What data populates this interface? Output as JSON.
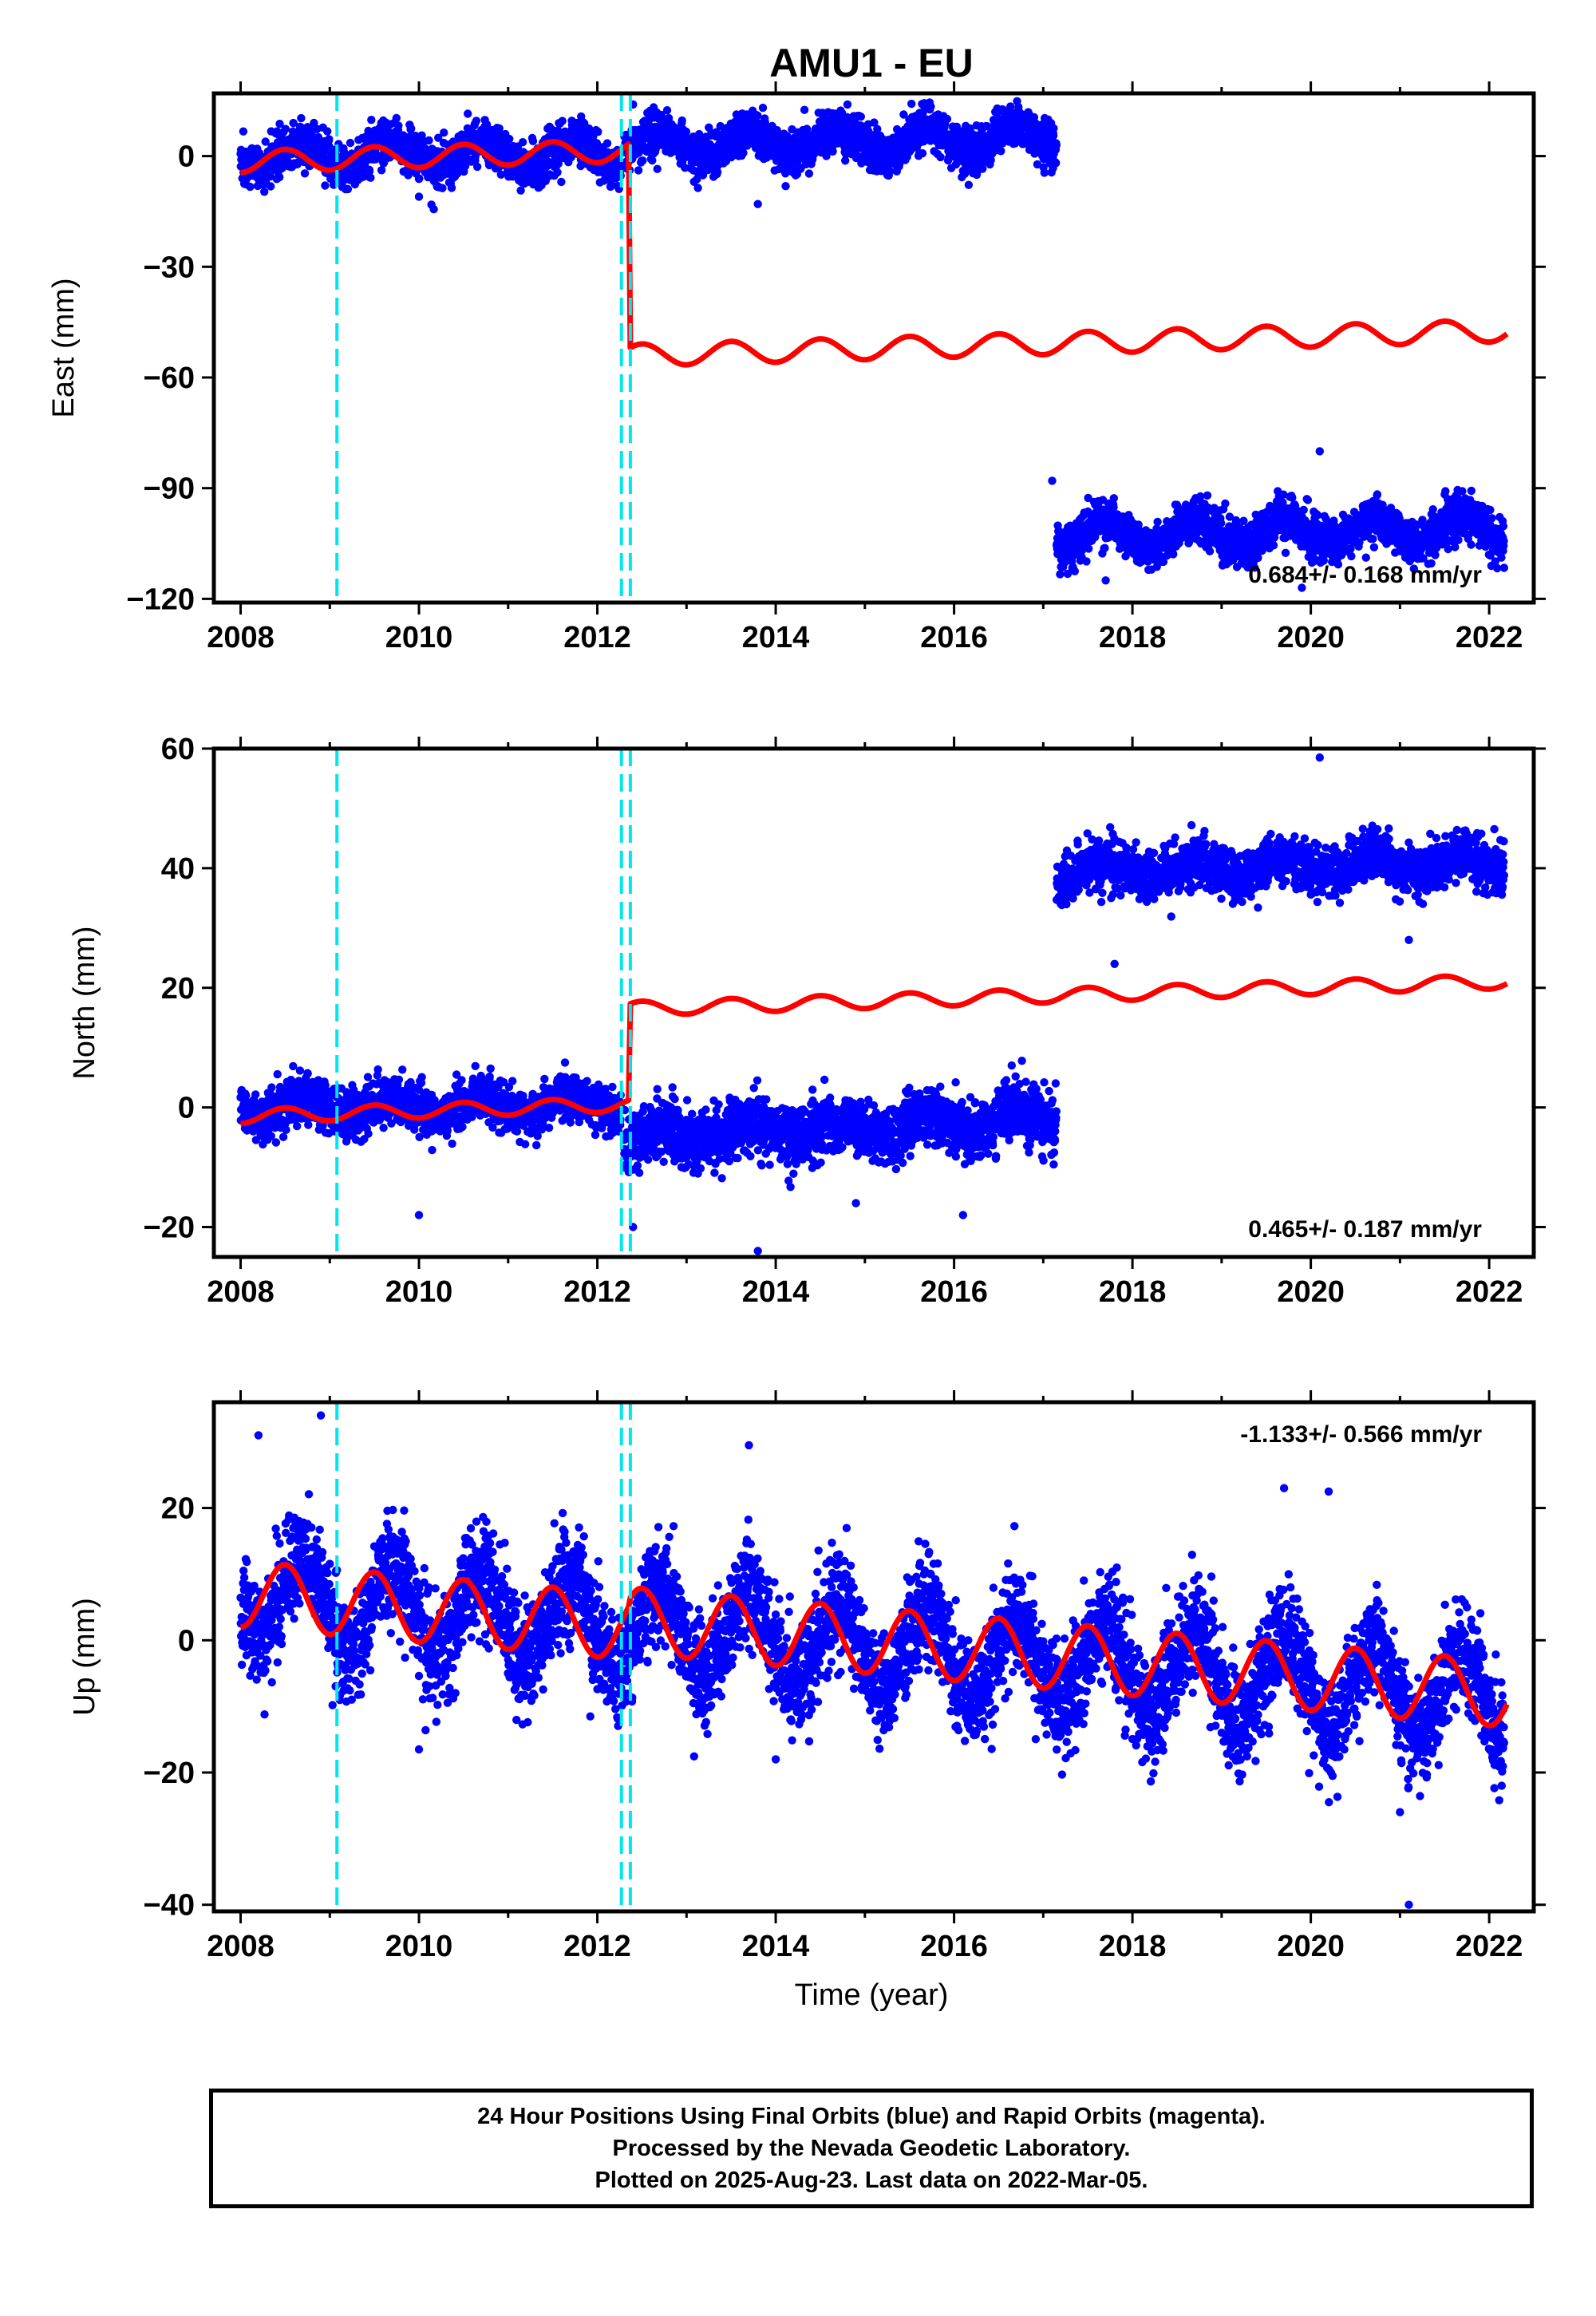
{
  "chart_data": {
    "title": "AMU1 - EU",
    "type": "scatter",
    "xlabel": "Time (year)",
    "x_ticks": [
      2008,
      2010,
      2012,
      2014,
      2016,
      2018,
      2020,
      2022
    ],
    "xlim": [
      2007.7,
      2022.5
    ],
    "offset_lines": [
      2009.08,
      2012.27,
      2012.37
    ],
    "colors": {
      "observations": "#0000ff",
      "model": "#ff0000",
      "offsets": "#00e5ee",
      "frame": "#000000"
    },
    "panels": [
      {
        "ylabel": "East (mm)",
        "ylim": [
          -121,
          17
        ],
        "y_ticks": [
          0,
          -30,
          -60,
          -90,
          -120
        ],
        "velocity": "0.684+/- 0.168 mm/yr",
        "velocity_position": "bottom-right",
        "observations": {
          "segments": [
            {
              "x_start": 2008.0,
              "x_end": 2012.27,
              "center_start": 0.0,
              "center_end": 1.0,
              "amplitude": 3.5,
              "scatter": 3.0
            },
            {
              "x_start": 2012.3,
              "x_end": 2017.15,
              "center_start": 3.0,
              "center_end": 5.0,
              "amplitude": 3.5,
              "scatter": 3.0
            },
            {
              "x_start": 2017.15,
              "x_end": 2022.17,
              "center_start": -103.0,
              "center_end": -101.0,
              "amplitude": 3.5,
              "scatter": 3.0
            }
          ],
          "outliers": [
            [
              2012.4,
              14
            ],
            [
              2013.8,
              -13
            ],
            [
              2017.1,
              -88
            ],
            [
              2020.1,
              -80
            ],
            [
              2019.9,
              -117
            ],
            [
              2017.7,
              -115
            ],
            [
              2010.0,
              -11
            ]
          ]
        },
        "model": {
          "segments": [
            {
              "x_start": 2008.0,
              "x_end": 2012.35,
              "start_value": -1.5,
              "slope": 0.684,
              "amplitude": 3.0
            },
            {
              "x_start": 2012.37,
              "x_end": 2022.2,
              "start_value": -54.0,
              "slope": 0.684,
              "amplitude": 3.0
            }
          ]
        }
      },
      {
        "ylabel": "North (mm)",
        "ylim": [
          -25,
          60
        ],
        "y_ticks": [
          60,
          40,
          20,
          0,
          -20
        ],
        "velocity": "0.465+/- 0.187 mm/yr",
        "velocity_position": "bottom-right",
        "observations": {
          "segments": [
            {
              "x_start": 2008.0,
              "x_end": 2012.27,
              "center_start": 0.0,
              "center_end": 0.5,
              "amplitude": 1.5,
              "scatter": 2.0
            },
            {
              "x_start": 2012.3,
              "x_end": 2017.15,
              "center_start": -5.0,
              "center_end": -2.0,
              "amplitude": 1.5,
              "scatter": 2.5
            },
            {
              "x_start": 2017.15,
              "x_end": 2022.17,
              "center_start": 39.5,
              "center_end": 41.0,
              "amplitude": 1.5,
              "scatter": 2.0
            }
          ],
          "outliers": [
            [
              2020.1,
              58.5
            ],
            [
              2013.8,
              -24
            ],
            [
              2012.4,
              -20
            ],
            [
              2010.0,
              -18
            ],
            [
              2016.1,
              -18
            ],
            [
              2017.8,
              24
            ],
            [
              2021.1,
              28
            ],
            [
              2014.9,
              -16
            ]
          ]
        },
        "model": {
          "segments": [
            {
              "x_start": 2008.0,
              "x_end": 2012.35,
              "start_value": -1.5,
              "slope": 0.465,
              "amplitude": 1.2
            },
            {
              "x_start": 2012.37,
              "x_end": 2022.2,
              "start_value": 16.5,
              "slope": 0.465,
              "amplitude": 1.2
            }
          ]
        }
      },
      {
        "ylabel": "Up (mm)",
        "ylim": [
          -41,
          36
        ],
        "y_ticks": [
          20,
          0,
          -20,
          -40
        ],
        "velocity": "-1.133+/- 0.566 mm/yr",
        "velocity_position": "top-right",
        "observations": {
          "segments": [
            {
              "x_start": 2008.0,
              "x_end": 2022.17,
              "center_start": 7.0,
              "center_end": -9.0,
              "amplitude": 6.5,
              "scatter": 4.0
            }
          ],
          "outliers": [
            [
              2008.9,
              34
            ],
            [
              2008.2,
              31
            ],
            [
              2013.7,
              29.5
            ],
            [
              2021.1,
              -40
            ],
            [
              2021.0,
              -26
            ],
            [
              2010.0,
              -16.5
            ],
            [
              2019.7,
              23
            ],
            [
              2020.2,
              22.5
            ],
            [
              2014.0,
              -18
            ]
          ]
        },
        "model": {
          "segments": [
            {
              "x_start": 2008.0,
              "x_end": 2012.35,
              "start_value": 7.0,
              "slope": -1.133,
              "amplitude": 5.0
            },
            {
              "x_start": 2012.37,
              "x_end": 2022.2,
              "start_value": 3.0,
              "slope": -1.133,
              "amplitude": 5.0
            }
          ]
        }
      }
    ]
  },
  "footer": {
    "line1": "24 Hour Positions Using Final Orbits (blue) and Rapid Orbits (magenta).",
    "line2": "Processed by the Nevada Geodetic Laboratory.",
    "line3": "Plotted on 2025-Aug-23. Last data on 2022-Mar-05."
  }
}
